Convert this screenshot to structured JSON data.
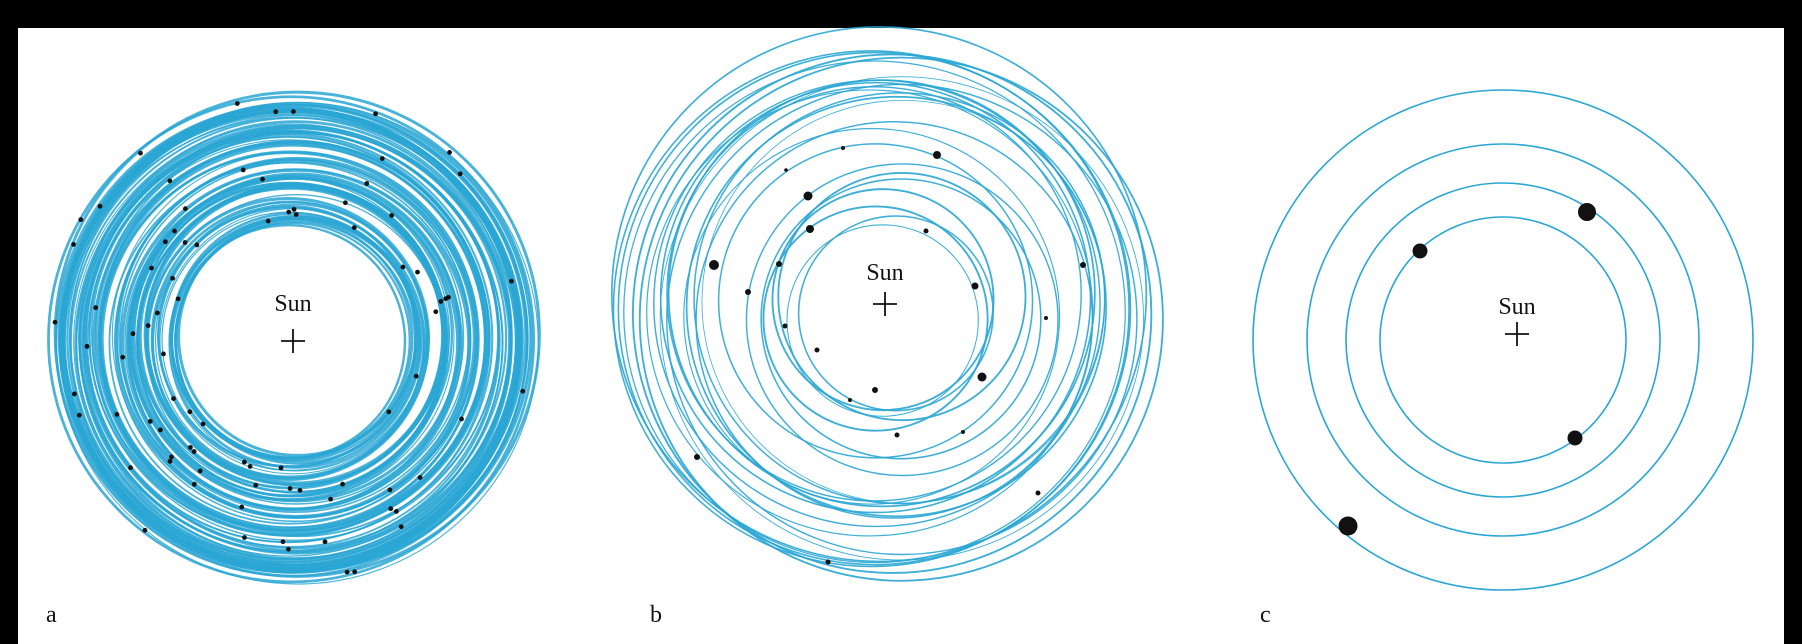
{
  "panels": [
    {
      "label": "a",
      "center_label": "Sun"
    },
    {
      "label": "b",
      "center_label": "Sun"
    },
    {
      "label": "c",
      "center_label": "Sun"
    }
  ]
}
